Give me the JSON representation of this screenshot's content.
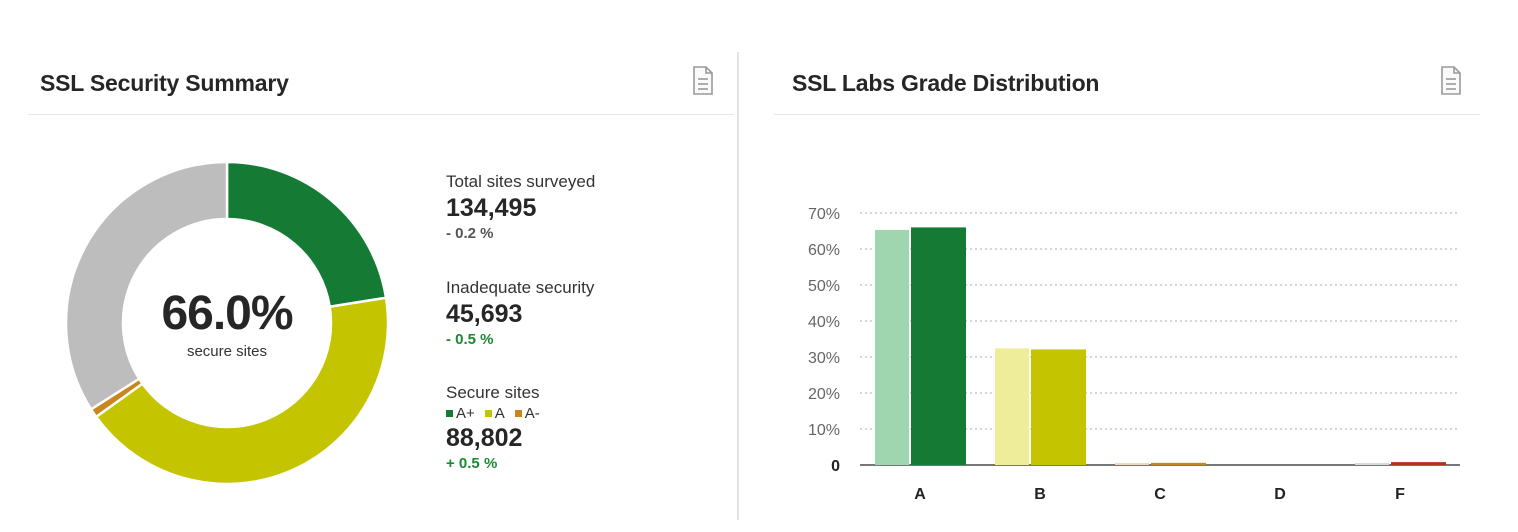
{
  "summary": {
    "title": "SSL Security Summary",
    "doc_icon": "document-icon",
    "center_value": "66.0%",
    "center_label": "secure sites",
    "donut_segments": [
      {
        "name": "A+",
        "percent": 22.5,
        "color": "#157a33"
      },
      {
        "name": "A",
        "percent": 42.6,
        "color": "#c4c400"
      },
      {
        "name": "A-",
        "percent": 0.9,
        "color": "#c8861b"
      },
      {
        "name": "Inadequate",
        "percent": 34.0,
        "color": "#bdbdbd"
      }
    ],
    "stats": [
      {
        "label": "Total sites surveyed",
        "value": "134,495",
        "change": "- 0.2 %",
        "tone": "neutral"
      },
      {
        "label": "Inadequate security",
        "value": "45,693",
        "change": "- 0.5 %",
        "tone": "good"
      },
      {
        "label": "Secure sites",
        "value": "88,802",
        "change": "+ 0.5 %",
        "tone": "good"
      }
    ],
    "legend": [
      {
        "label": "A+",
        "color": "#157a33"
      },
      {
        "label": "A",
        "color": "#c4c400"
      },
      {
        "label": "A-",
        "color": "#c8861b"
      }
    ]
  },
  "distribution": {
    "title": "SSL Labs Grade Distribution",
    "doc_icon": "document-icon"
  },
  "chart_data": {
    "type": "bar",
    "title": "SSL Labs Grade Distribution",
    "categories": [
      "A",
      "B",
      "C",
      "D",
      "F"
    ],
    "ylim": [
      0,
      70
    ],
    "yticks": [
      "0",
      "10%",
      "20%",
      "30%",
      "40%",
      "50%",
      "60%",
      "70%"
    ],
    "ytick_values": [
      0,
      10,
      20,
      30,
      40,
      50,
      60,
      70
    ],
    "grid": true,
    "series": [
      {
        "values": [
          65.3,
          32.4,
          0.5,
          0.0,
          0.4
        ],
        "colors": [
          "#9fd6b0",
          "#eeee9a",
          "#f0dab5",
          "#dddddd",
          "#d9d9d9"
        ]
      },
      {
        "values": [
          66.0,
          32.1,
          0.6,
          0.0,
          0.8
        ],
        "colors": [
          "#157a33",
          "#c4c400",
          "#c8861b",
          "#a0a0a0",
          "#b3321c"
        ]
      }
    ]
  }
}
